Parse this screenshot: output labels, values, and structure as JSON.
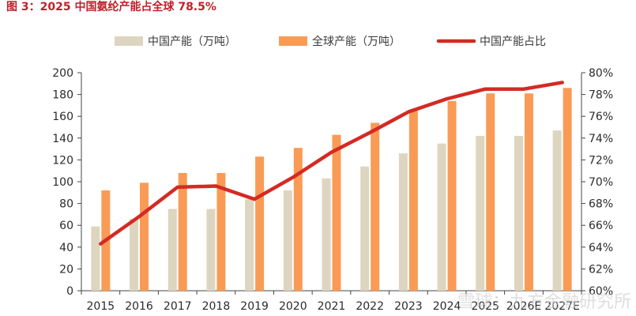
{
  "title": "图 3：2025 中国氨纶产能占全球 78.5%",
  "watermark": "雪球：九方金融研究所",
  "chart_data": {
    "type": "bar+line",
    "categories": [
      "2015",
      "2016",
      "2017",
      "2018",
      "2019",
      "2020",
      "2021",
      "2022",
      "2023",
      "2024",
      "2025",
      "2026E",
      "2027E"
    ],
    "series": [
      {
        "name": "中国产能（万吨）",
        "type": "bar",
        "axis": "left",
        "color": "#ddd5bf",
        "values": [
          59,
          66,
          75,
          75,
          84,
          92,
          103,
          114,
          126,
          135,
          142,
          142,
          147
        ]
      },
      {
        "name": "全球产能（万吨）",
        "type": "bar",
        "axis": "left",
        "color": "#f99b55",
        "values": [
          92,
          99,
          108,
          108,
          123,
          131,
          143,
          154,
          165,
          174,
          181,
          181,
          186
        ]
      },
      {
        "name": "中国产能占比",
        "type": "line",
        "axis": "right",
        "color": "#d42a24",
        "values": [
          64.3,
          66.8,
          69.5,
          69.6,
          68.4,
          70.4,
          72.7,
          74.5,
          76.4,
          77.6,
          78.5,
          78.5,
          79.1
        ]
      }
    ],
    "yleft": {
      "min": 0,
      "max": 200,
      "ticks": [
        0,
        20,
        40,
        60,
        80,
        100,
        120,
        140,
        160,
        180,
        200
      ]
    },
    "yright": {
      "min": 60,
      "max": 80,
      "ticks": [
        "60%",
        "62%",
        "64%",
        "66%",
        "68%",
        "70%",
        "72%",
        "74%",
        "76%",
        "78%",
        "80%"
      ]
    },
    "legend_position": "top"
  }
}
